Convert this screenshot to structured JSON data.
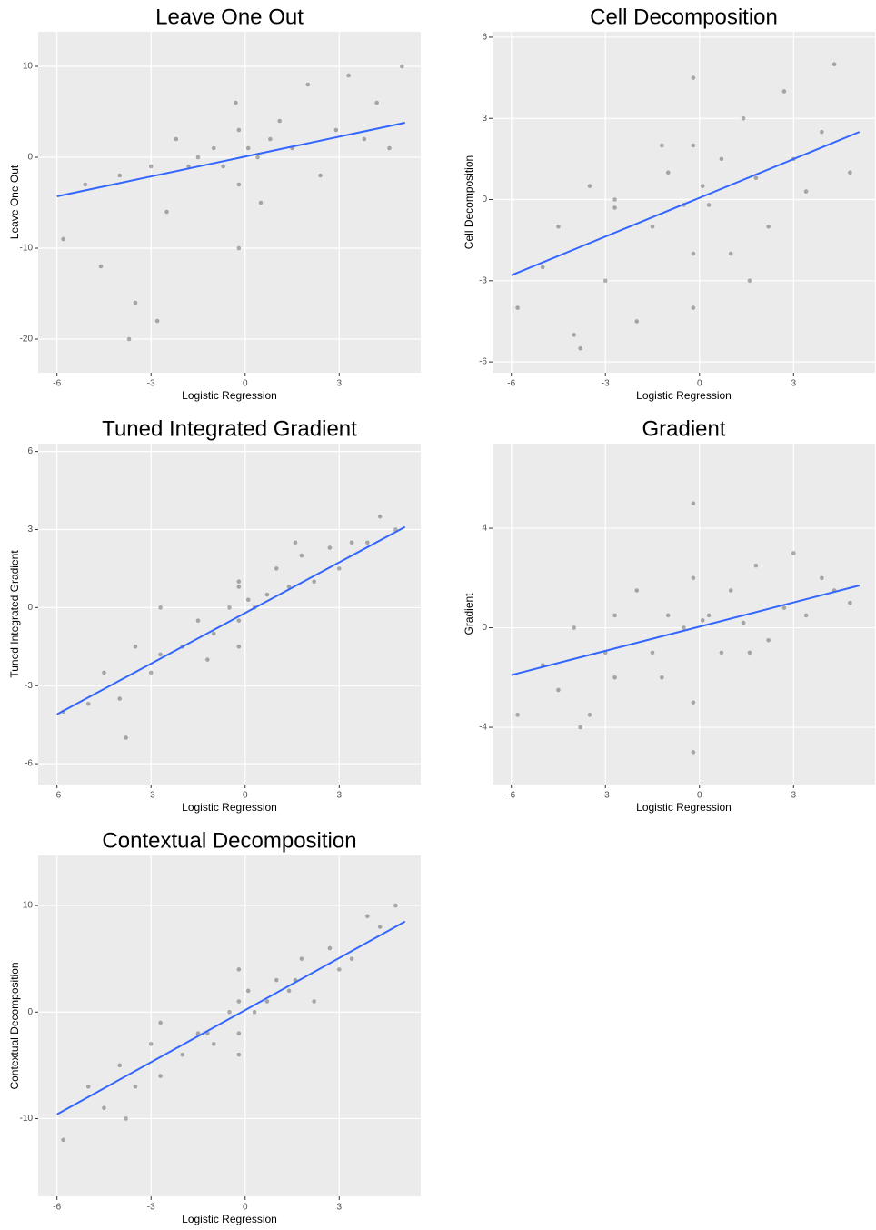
{
  "chart_data": [
    {
      "type": "scatter",
      "title": "Leave One Out",
      "x_label": "Logistic Regression",
      "y_label": "Leave One Out",
      "xlim": [
        -6.6,
        5.6
      ],
      "ylim": [
        -23.7,
        13.8
      ],
      "xticks": [
        -6,
        -3,
        0,
        3
      ],
      "yticks": [
        -20,
        -10,
        0,
        10
      ],
      "grid": true,
      "color": "#000000",
      "x": [
        -5.8,
        -5.1,
        -4.6,
        -4.0,
        -3.5,
        -3.0,
        -2.8,
        -2.2,
        -1.8,
        -1.5,
        -1.0,
        -0.7,
        -0.3,
        -0.2,
        -0.2,
        -0.2,
        0.1,
        0.4,
        0.8,
        1.1,
        1.5,
        2.0,
        2.4,
        2.9,
        3.3,
        3.8,
        4.2,
        4.6,
        5.0,
        -3.7,
        -2.5,
        0.5
      ],
      "values": [
        -9,
        -3,
        -12,
        -2,
        -16,
        -1,
        -18,
        2,
        -1,
        0,
        1,
        -1,
        6,
        -3,
        3,
        -10,
        1,
        0,
        2,
        4,
        1,
        8,
        -2,
        3,
        9,
        2,
        6,
        1,
        10,
        -20,
        -6,
        -5
      ],
      "fit": {
        "x": [
          -6,
          5.1
        ],
        "values": [
          -4.3,
          3.8
        ],
        "color": "#3366ff"
      }
    },
    {
      "type": "scatter",
      "title": "Cell Decomposition",
      "x_label": "Logistic Regression",
      "y_label": "Cell Decomposition",
      "xlim": [
        -6.6,
        5.6
      ],
      "ylim": [
        -6.4,
        6.2
      ],
      "xticks": [
        -6,
        -3,
        0,
        3
      ],
      "yticks": [
        -6,
        -3,
        0,
        3,
        6
      ],
      "grid": true,
      "color": "#000000",
      "x": [
        -5.8,
        -5.0,
        -4.5,
        -4.0,
        -3.5,
        -3.0,
        -2.7,
        -2.7,
        -2.0,
        -1.5,
        -1.0,
        -0.5,
        -0.2,
        -0.2,
        -0.2,
        -0.2,
        0.1,
        0.3,
        0.7,
        1.0,
        1.4,
        1.8,
        2.2,
        2.7,
        3.0,
        3.4,
        3.9,
        4.3,
        4.8,
        -3.8,
        -1.2,
        1.6
      ],
      "values": [
        -4,
        -2.5,
        -1,
        -5,
        0.5,
        -3,
        0,
        -0.3,
        -4.5,
        -1,
        1,
        -0.2,
        4.5,
        -4,
        2,
        -2,
        0.5,
        -0.2,
        1.5,
        -2,
        3,
        0.8,
        -1,
        4,
        1.5,
        0.3,
        2.5,
        5,
        1,
        -5.5,
        2,
        -3
      ],
      "fit": {
        "x": [
          -6,
          5.1
        ],
        "values": [
          -2.8,
          2.5
        ],
        "color": "#3366ff"
      }
    },
    {
      "type": "scatter",
      "title": "Tuned Integrated Gradient",
      "x_label": "Logistic Regression",
      "y_label": "Tuned Integrated Gradient",
      "xlim": [
        -6.6,
        5.6
      ],
      "ylim": [
        -6.8,
        6.3
      ],
      "xticks": [
        -6,
        -3,
        0,
        3
      ],
      "yticks": [
        -6,
        -3,
        0,
        3,
        6
      ],
      "grid": true,
      "color": "#000000",
      "x": [
        -5.8,
        -5.0,
        -4.5,
        -4.0,
        -3.5,
        -3.0,
        -2.7,
        -2.7,
        -2.0,
        -1.5,
        -1.0,
        -0.5,
        -0.2,
        -0.2,
        -0.2,
        -0.2,
        0.1,
        0.3,
        0.7,
        1.0,
        1.4,
        1.8,
        2.2,
        2.7,
        3.0,
        3.4,
        3.9,
        4.3,
        4.8,
        -3.8,
        -1.2,
        1.6
      ],
      "values": [
        -4,
        -3.7,
        -2.5,
        -3.5,
        -1.5,
        -2.5,
        -1.8,
        0,
        -1.5,
        -0.5,
        -1,
        0,
        -0.5,
        1,
        -1.5,
        0.8,
        0.3,
        0,
        0.5,
        1.5,
        0.8,
        2,
        1,
        2.3,
        1.5,
        2.5,
        2.5,
        3.5,
        3,
        -5,
        -2,
        2.5
      ],
      "fit": {
        "x": [
          -6,
          5.1
        ],
        "values": [
          -4.1,
          3.1
        ],
        "color": "#3366ff"
      }
    },
    {
      "type": "scatter",
      "title": "Gradient",
      "x_label": "Logistic Regression",
      "y_label": "Gradient",
      "xlim": [
        -6.6,
        5.6
      ],
      "ylim": [
        -6.3,
        7.4
      ],
      "xticks": [
        -6,
        -3,
        0,
        3
      ],
      "yticks": [
        -4,
        0,
        4
      ],
      "grid": true,
      "color": "#000000",
      "x": [
        -5.8,
        -5.0,
        -4.5,
        -4.0,
        -3.5,
        -3.0,
        -2.7,
        -2.7,
        -2.0,
        -1.5,
        -1.0,
        -0.5,
        -0.2,
        -0.2,
        -0.2,
        -0.2,
        0.1,
        0.3,
        0.7,
        1.0,
        1.4,
        1.8,
        2.2,
        2.7,
        3.0,
        3.4,
        3.9,
        4.3,
        4.8,
        -3.8,
        -1.2,
        1.6
      ],
      "values": [
        -3.5,
        -1.5,
        -2.5,
        0,
        -3.5,
        -1,
        0.5,
        -2,
        1.5,
        -1,
        0.5,
        0,
        5,
        -5,
        2,
        -3,
        0.3,
        0.5,
        -1,
        1.5,
        0.2,
        2.5,
        -0.5,
        0.8,
        3,
        0.5,
        2,
        1.5,
        1,
        -4,
        -2,
        -1
      ],
      "fit": {
        "x": [
          -6,
          5.1
        ],
        "values": [
          -1.9,
          1.7
        ],
        "color": "#3366ff"
      }
    },
    {
      "type": "scatter",
      "title": "Contextual Decomposition",
      "x_label": "Logistic Regression",
      "y_label": "Contextual Decomposition",
      "xlim": [
        -6.6,
        5.6
      ],
      "ylim": [
        -17.3,
        14.7
      ],
      "xticks": [
        -6,
        -3,
        0,
        3
      ],
      "yticks": [
        -10,
        0,
        10
      ],
      "grid": true,
      "color": "#000000",
      "x": [
        -5.8,
        -5.0,
        -4.5,
        -4.0,
        -3.5,
        -3.0,
        -2.7,
        -2.7,
        -2.0,
        -1.5,
        -1.0,
        -0.5,
        -0.2,
        -0.2,
        -0.2,
        -0.2,
        0.1,
        0.3,
        0.7,
        1.0,
        1.4,
        1.8,
        2.2,
        2.7,
        3.0,
        3.4,
        3.9,
        4.3,
        4.8,
        -3.8,
        -1.2,
        1.6
      ],
      "values": [
        -12,
        -7,
        -9,
        -5,
        -7,
        -3,
        -6,
        -1,
        -4,
        -2,
        -3,
        0,
        4,
        -2,
        1,
        -4,
        2,
        0,
        1,
        3,
        2,
        5,
        1,
        6,
        4,
        5,
        9,
        8,
        10,
        -10,
        -2,
        3
      ],
      "fit": {
        "x": [
          -6,
          5.1
        ],
        "values": [
          -9.6,
          8.5
        ],
        "color": "#3366ff"
      }
    }
  ]
}
